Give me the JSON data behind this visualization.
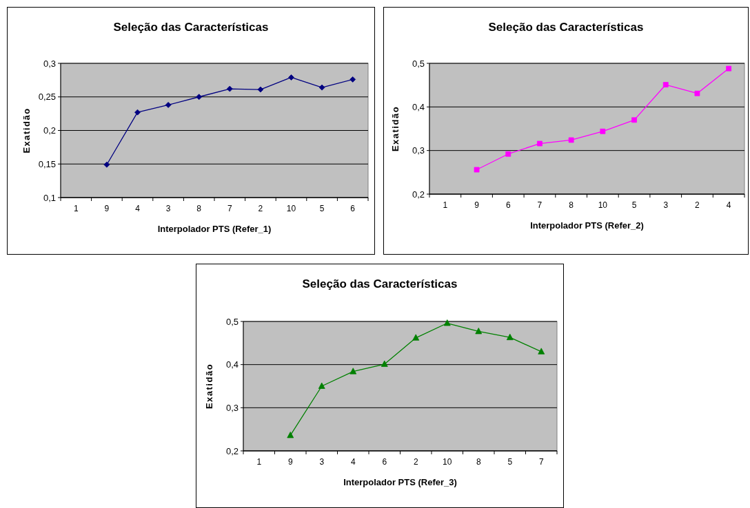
{
  "chart_data": [
    {
      "type": "line",
      "title": "Seleção das Características",
      "xlabel": "Interpolador PTS (Refer_1)",
      "ylabel": "Exatidão",
      "categories": [
        "1",
        "9",
        "4",
        "3",
        "8",
        "7",
        "2",
        "10",
        "5",
        "6"
      ],
      "series": [
        {
          "color": "#000080",
          "values": [
            null,
            0.149,
            0.227,
            0.238,
            0.25,
            0.262,
            0.261,
            0.279,
            0.264,
            0.276
          ]
        }
      ],
      "ylim": [
        0.1,
        0.3
      ],
      "yticks": [
        {
          "value": 0.1,
          "label": "0,1"
        },
        {
          "value": 0.15,
          "label": "0,15"
        },
        {
          "value": 0.2,
          "label": "0,2"
        },
        {
          "value": 0.25,
          "label": "0,25"
        },
        {
          "value": 0.3,
          "label": "0,3"
        }
      ],
      "grid": "y",
      "marker": "diamond"
    },
    {
      "type": "line",
      "title": "Seleção das Características",
      "xlabel": "Interpolador PTS (Refer_2)",
      "ylabel": "Exatidão",
      "categories": [
        "1",
        "9",
        "6",
        "7",
        "8",
        "10",
        "5",
        "3",
        "2",
        "4"
      ],
      "series": [
        {
          "color": "#ff00ff",
          "values": [
            null,
            0.256,
            0.292,
            0.316,
            0.324,
            0.344,
            0.37,
            0.451,
            0.431,
            0.488
          ]
        }
      ],
      "ylim": [
        0.2,
        0.5
      ],
      "yticks": [
        {
          "value": 0.2,
          "label": "0,2"
        },
        {
          "value": 0.3,
          "label": "0,3"
        },
        {
          "value": 0.4,
          "label": "0,4"
        },
        {
          "value": 0.5,
          "label": "0,5"
        }
      ],
      "grid": "y",
      "marker": "square"
    },
    {
      "type": "line",
      "title": "Seleção das Características",
      "xlabel": "Interpolador PTS (Refer_3)",
      "ylabel": "Exatidão",
      "categories": [
        "1",
        "9",
        "3",
        "4",
        "6",
        "2",
        "10",
        "8",
        "5",
        "7"
      ],
      "series": [
        {
          "color": "#008000",
          "values": [
            null,
            0.236,
            0.35,
            0.384,
            0.401,
            0.462,
            0.496,
            0.477,
            0.463,
            0.43
          ]
        }
      ],
      "ylim": [
        0.2,
        0.5
      ],
      "yticks": [
        {
          "value": 0.2,
          "label": "0,2"
        },
        {
          "value": 0.3,
          "label": "0,3"
        },
        {
          "value": 0.4,
          "label": "0,4"
        },
        {
          "value": 0.5,
          "label": "0,5"
        }
      ],
      "grid": "y",
      "marker": "triangle"
    }
  ]
}
